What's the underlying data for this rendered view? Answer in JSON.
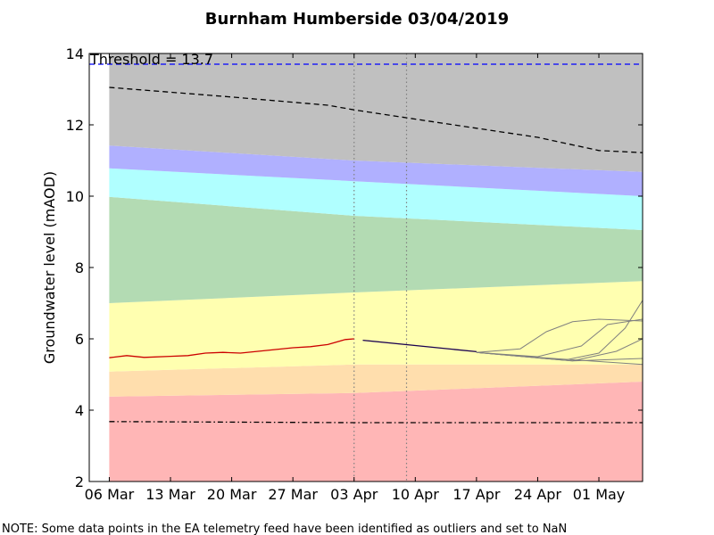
{
  "chart_data": {
    "type": "area",
    "title": "Burnham Humberside 03/04/2019",
    "xlabel": "",
    "ylabel": "Groundwater level (mAOD)",
    "ylim": [
      2,
      14
    ],
    "x_tick_labels": [
      "06 Mar",
      "13 Mar",
      "20 Mar",
      "27 Mar",
      "03 Apr",
      "10 Apr",
      "17 Apr",
      "24 Apr",
      "01 May"
    ],
    "y_tick_labels": [
      "2",
      "4",
      "6",
      "8",
      "10",
      "12",
      "14"
    ],
    "grid": false,
    "annotation": "Threshold = 13.7",
    "threshold": 13.7,
    "x": [
      "2019-03-06",
      "2019-04-03",
      "2019-05-06"
    ],
    "bands": [
      {
        "color": "#ffb6b6",
        "lower": [
          2,
          2,
          2
        ],
        "upper": [
          4.38,
          4.48,
          4.8
        ]
      },
      {
        "color": "#ffdead",
        "lower": [
          4.38,
          4.48,
          4.8
        ],
        "upper": [
          5.08,
          5.28,
          5.28
        ]
      },
      {
        "color": "#ffffb0",
        "lower": [
          5.08,
          5.28,
          5.28
        ],
        "upper": [
          7.0,
          7.3,
          7.62
        ]
      },
      {
        "color": "#b3dbb3",
        "lower": [
          7.0,
          7.3,
          7.62
        ],
        "upper": [
          9.98,
          9.45,
          9.05
        ]
      },
      {
        "color": "#b0ffff",
        "lower": [
          9.98,
          9.45,
          9.05
        ],
        "upper": [
          10.78,
          10.42,
          10.0
        ]
      },
      {
        "color": "#b0b0ff",
        "lower": [
          10.78,
          10.42,
          10.0
        ],
        "upper": [
          11.42,
          11.0,
          10.68
        ]
      },
      {
        "color": "#c0c0c0",
        "lower": [
          11.42,
          11.0,
          10.68
        ],
        "upper": [
          14,
          14,
          14
        ]
      }
    ],
    "series": [
      {
        "style": "dashed",
        "color": "#000000",
        "points": [
          [
            "2019-03-06",
            13.05
          ],
          [
            "2019-03-20",
            12.78
          ],
          [
            "2019-03-31",
            12.55
          ],
          [
            "2019-04-03",
            12.42
          ],
          [
            "2019-04-13",
            12.05
          ],
          [
            "2019-04-24",
            11.65
          ],
          [
            "2019-05-01",
            11.28
          ],
          [
            "2019-05-06",
            11.22
          ]
        ]
      },
      {
        "style": "dashdot",
        "color": "#000000",
        "points": [
          [
            "2019-03-06",
            3.68
          ],
          [
            "2019-04-03",
            3.65
          ],
          [
            "2019-05-06",
            3.65
          ]
        ]
      },
      {
        "style": "solid",
        "color": "#cc0000",
        "points": [
          [
            "2019-03-06",
            5.47
          ],
          [
            "2019-03-08",
            5.53
          ],
          [
            "2019-03-10",
            5.48
          ],
          [
            "2019-03-13",
            5.51
          ],
          [
            "2019-03-15",
            5.53
          ],
          [
            "2019-03-17",
            5.6
          ],
          [
            "2019-03-19",
            5.62
          ],
          [
            "2019-03-21",
            5.6
          ],
          [
            "2019-03-23",
            5.65
          ],
          [
            "2019-03-25",
            5.7
          ],
          [
            "2019-03-27",
            5.75
          ],
          [
            "2019-03-29",
            5.78
          ],
          [
            "2019-03-31",
            5.84
          ],
          [
            "2019-04-02",
            5.98
          ],
          [
            "2019-04-03",
            6.0
          ]
        ]
      },
      {
        "style": "solid",
        "color": "#1a0050",
        "points": [
          [
            "2019-04-04",
            5.96
          ],
          [
            "2019-04-17",
            5.64
          ]
        ]
      },
      {
        "style": "solid",
        "color": "#808080",
        "points": [
          [
            "2019-04-17",
            5.62
          ],
          [
            "2019-04-24",
            5.48
          ],
          [
            "2019-05-06",
            5.28
          ]
        ]
      },
      {
        "style": "solid",
        "color": "#808080",
        "points": [
          [
            "2019-04-17",
            5.62
          ],
          [
            "2019-04-22",
            5.72
          ],
          [
            "2019-04-25",
            6.2
          ],
          [
            "2019-04-28",
            6.48
          ],
          [
            "2019-05-01",
            6.55
          ],
          [
            "2019-05-06",
            6.5
          ]
        ]
      },
      {
        "style": "solid",
        "color": "#808080",
        "points": [
          [
            "2019-04-17",
            5.62
          ],
          [
            "2019-04-24",
            5.5
          ],
          [
            "2019-04-29",
            5.8
          ],
          [
            "2019-05-02",
            6.4
          ],
          [
            "2019-05-06",
            6.55
          ]
        ]
      },
      {
        "style": "solid",
        "color": "#808080",
        "points": [
          [
            "2019-04-17",
            5.62
          ],
          [
            "2019-04-27",
            5.4
          ],
          [
            "2019-05-01",
            5.6
          ],
          [
            "2019-05-04",
            6.3
          ],
          [
            "2019-05-06",
            7.08
          ]
        ]
      },
      {
        "style": "solid",
        "color": "#808080",
        "points": [
          [
            "2019-04-17",
            5.62
          ],
          [
            "2019-04-28",
            5.38
          ],
          [
            "2019-05-03",
            5.65
          ],
          [
            "2019-05-06",
            6.0
          ]
        ]
      },
      {
        "style": "solid",
        "color": "#808080",
        "points": [
          [
            "2019-04-17",
            5.62
          ],
          [
            "2019-04-28",
            5.38
          ],
          [
            "2019-05-06",
            5.45
          ]
        ]
      }
    ],
    "vlines": [
      "2019-04-03",
      "2019-04-09"
    ]
  },
  "footnote": "NOTE: Some data points in the EA telemetry feed have been identified as outliers and set to NaN"
}
